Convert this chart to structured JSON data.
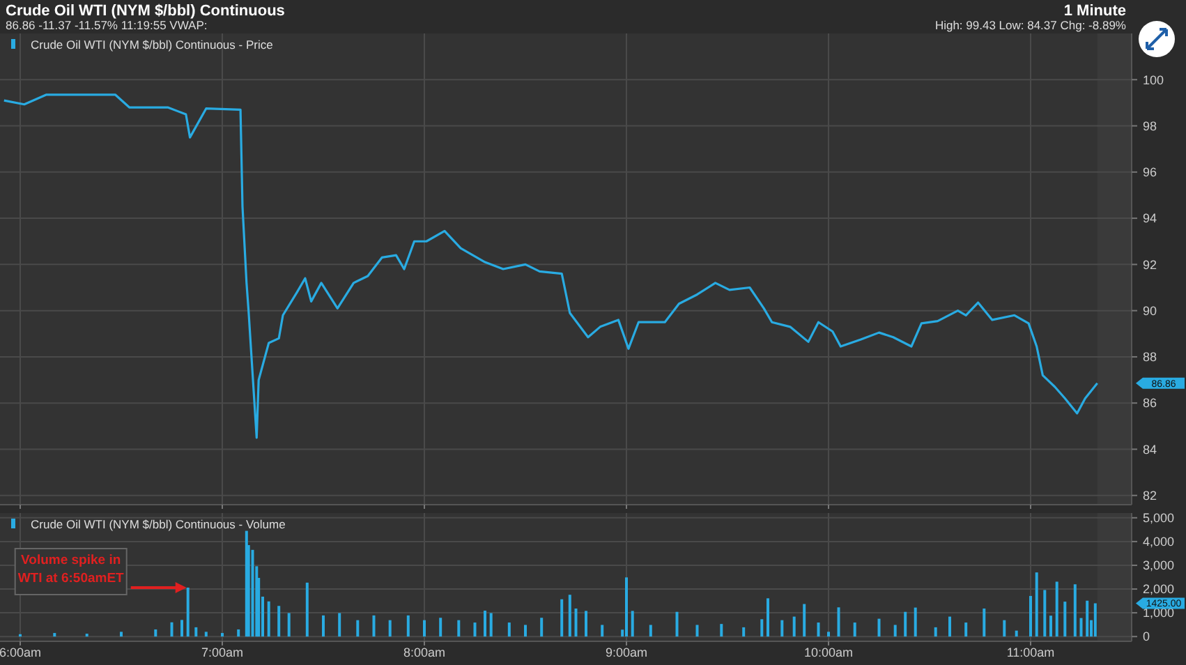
{
  "chart_data": [
    {
      "type": "line",
      "title": "Crude Oil WTI (NYM $/bbl) Continuous",
      "subtitle": "86.86 -11.37 -11.57% 11:19:55 VWAP:",
      "annotations": [
        "1 Minute",
        "High: 99.43 Low: 84.37 Chg: -8.89%",
        "86.86"
      ],
      "xlim": [
        5.9,
        11.5
      ],
      "xticks": [
        {
          "value": 6,
          "label": null
        },
        {
          "value": 7,
          "label": null
        },
        {
          "value": 8,
          "label": null
        },
        {
          "value": 9,
          "label": null
        },
        {
          "value": 10,
          "label": null
        },
        {
          "value": 11,
          "label": null
        }
      ],
      "ylim": [
        81.6,
        102
      ],
      "yticks": [
        82,
        84,
        86,
        88,
        90,
        92,
        94,
        96,
        98,
        100
      ],
      "tick_labels": "y",
      "grid": true,
      "legend": "top left",
      "bands": [
        {
          "axis": "x",
          "from": 11.33,
          "to": 11.5,
          "color": "#3a3a3a"
        }
      ],
      "series": [
        {
          "name": "Crude Oil WTI (NYM $/bbl) Continuous - Price",
          "color": "#29abe2",
          "x": [
            5.92,
            6.02,
            6.13,
            6.47,
            6.54,
            6.73,
            6.82,
            6.84,
            6.92,
            7.09,
            7.1,
            7.12,
            7.13,
            7.17,
            7.18,
            7.23,
            7.28,
            7.3,
            7.37,
            7.41,
            7.44,
            7.49,
            7.57,
            7.65,
            7.72,
            7.79,
            7.86,
            7.9,
            7.95,
            8.01,
            8.1,
            8.18,
            8.3,
            8.39,
            8.5,
            8.57,
            8.68,
            8.72,
            8.81,
            8.87,
            8.96,
            9.01,
            9.06,
            9.19,
            9.26,
            9.35,
            9.44,
            9.51,
            9.61,
            9.68,
            9.72,
            9.81,
            9.9,
            9.95,
            10.02,
            10.06,
            10.16,
            10.25,
            10.32,
            10.41,
            10.46,
            10.54,
            10.64,
            10.68,
            10.74,
            10.81,
            10.92,
            10.99,
            11.03,
            11.06,
            11.12,
            11.17,
            11.23,
            11.27,
            11.33
          ],
          "values": [
            99.1,
            98.93,
            99.35,
            99.35,
            98.8,
            98.8,
            98.5,
            97.5,
            98.75,
            98.7,
            94.5,
            91.2,
            90.0,
            84.5,
            87.0,
            88.6,
            88.8,
            89.8,
            90.8,
            91.4,
            90.4,
            91.2,
            90.1,
            91.2,
            91.5,
            92.3,
            92.4,
            91.8,
            93.0,
            93.0,
            93.45,
            92.7,
            92.1,
            91.8,
            92.0,
            91.7,
            91.6,
            89.9,
            88.85,
            89.3,
            89.6,
            88.35,
            89.5,
            89.5,
            90.3,
            90.7,
            91.2,
            90.9,
            91.0,
            90.1,
            89.5,
            89.3,
            88.65,
            89.5,
            89.1,
            88.45,
            88.75,
            89.05,
            88.85,
            88.45,
            89.45,
            89.55,
            90.0,
            89.8,
            90.35,
            89.6,
            89.8,
            89.45,
            88.45,
            87.2,
            86.7,
            86.2,
            85.55,
            86.2,
            86.86
          ]
        }
      ]
    },
    {
      "type": "bar",
      "annotations": [
        {
          "text": "Volume spike in WTI at 6:50amET",
          "x": 6.83,
          "y": 2060
        },
        "1425.00"
      ],
      "xlim": [
        5.9,
        11.5
      ],
      "xticks": [
        {
          "value": 6,
          "label": "6:00am"
        },
        {
          "value": 7,
          "label": "7:00am"
        },
        {
          "value": 8,
          "label": "8:00am"
        },
        {
          "value": 9,
          "label": "9:00am"
        },
        {
          "value": 10,
          "label": "10:00am"
        },
        {
          "value": 11,
          "label": "11:00am"
        }
      ],
      "ylim": [
        -200,
        5200
      ],
      "yticks": [
        0,
        {
          "value": 1000,
          "label": "1,000"
        },
        {
          "value": 2000,
          "label": "2,000"
        },
        {
          "value": 3000,
          "label": "3,000"
        },
        {
          "value": 4000,
          "label": "4,000"
        },
        {
          "value": 5000,
          "label": "5,000"
        }
      ],
      "grid": true,
      "legend": "top left",
      "bands": [
        {
          "axis": "x",
          "from": 11.33,
          "to": 11.5,
          "color": "#3a3a3a"
        }
      ],
      "series": [
        {
          "name": "Crude Oil WTI (NYM $/bbl) Continuous - Volume",
          "color": "#29abe2",
          "x": [
            6.0,
            6.17,
            6.33,
            6.5,
            6.67,
            6.75,
            6.8,
            6.83,
            6.87,
            6.92,
            7.0,
            7.08,
            7.12,
            7.13,
            7.15,
            7.17,
            7.18,
            7.2,
            7.23,
            7.28,
            7.33,
            7.42,
            7.5,
            7.58,
            7.67,
            7.75,
            7.83,
            7.92,
            8.0,
            8.08,
            8.17,
            8.25,
            8.3,
            8.33,
            8.42,
            8.5,
            8.58,
            8.68,
            8.72,
            8.75,
            8.8,
            8.88,
            8.98,
            9.0,
            9.03,
            9.12,
            9.25,
            9.35,
            9.47,
            9.58,
            9.67,
            9.7,
            9.77,
            9.83,
            9.88,
            9.95,
            10.0,
            10.05,
            10.13,
            10.25,
            10.33,
            10.38,
            10.43,
            10.53,
            10.6,
            10.68,
            10.77,
            10.87,
            10.93,
            11.0,
            11.03,
            11.07,
            11.1,
            11.13,
            11.17,
            11.22,
            11.25,
            11.28,
            11.3,
            11.32
          ],
          "values": [
            100,
            150,
            120,
            200,
            300,
            600,
            700,
            2060,
            390,
            200,
            150,
            300,
            4450,
            3850,
            3650,
            2960,
            2470,
            1680,
            1480,
            1290,
            990,
            2270,
            890,
            990,
            690,
            890,
            690,
            890,
            690,
            790,
            690,
            590,
            1090,
            990,
            590,
            490,
            790,
            1570,
            1760,
            1180,
            1080,
            490,
            290,
            2490,
            1080,
            490,
            1040,
            490,
            530,
            390,
            730,
            1610,
            690,
            840,
            1370,
            590,
            200,
            1230,
            590,
            750,
            490,
            1040,
            1220,
            390,
            840,
            590,
            1180,
            690,
            250,
            1710,
            2700,
            1960,
            880,
            2310,
            1470,
            2200,
            780,
            1510,
            690,
            1400
          ]
        }
      ]
    }
  ]
}
